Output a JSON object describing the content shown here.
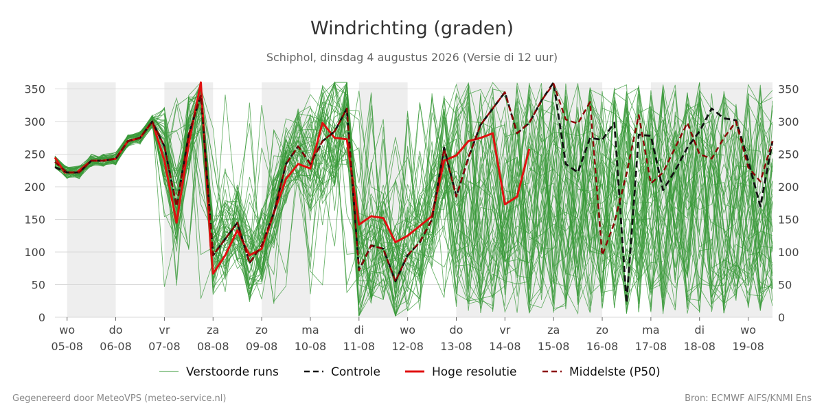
{
  "header": {
    "title": "Windrichting (graden)",
    "subtitle": "Schiphol, dinsdag  4 augustus 2026 (Versie di 12 uur)"
  },
  "footer": {
    "left": "Gegenereerd door MeteoVPS (meteo-service.nl)",
    "right": "Bron: ECMWF AIFS/KNMI Ens"
  },
  "chart_data": {
    "type": "line",
    "title": "Windrichting (graden)",
    "subtitle": "Schiphol, dinsdag  4 augustus 2026 (Versie di 12 uur)",
    "x_range_days": [
      -0.25,
      14.5
    ],
    "ylim": [
      0,
      360
    ],
    "y_ticks": [
      0,
      50,
      100,
      150,
      200,
      250,
      300,
      350
    ],
    "y_axis_both_sides": true,
    "grid": "horizontal",
    "x_ticks": [
      {
        "day": 0,
        "weekday": "wo",
        "date": "05-08"
      },
      {
        "day": 1,
        "weekday": "do",
        "date": "06-08"
      },
      {
        "day": 2,
        "weekday": "vr",
        "date": "07-08"
      },
      {
        "day": 3,
        "weekday": "za",
        "date": "08-08"
      },
      {
        "day": 4,
        "weekday": "zo",
        "date": "09-08"
      },
      {
        "day": 5,
        "weekday": "ma",
        "date": "10-08"
      },
      {
        "day": 6,
        "weekday": "di",
        "date": "11-08"
      },
      {
        "day": 7,
        "weekday": "wo",
        "date": "12-08"
      },
      {
        "day": 8,
        "weekday": "do",
        "date": "13-08"
      },
      {
        "day": 9,
        "weekday": "vr",
        "date": "14-08"
      },
      {
        "day": 10,
        "weekday": "za",
        "date": "15-08"
      },
      {
        "day": 11,
        "weekday": "zo",
        "date": "16-08"
      },
      {
        "day": 12,
        "weekday": "ma",
        "date": "17-08"
      },
      {
        "day": 13,
        "weekday": "di",
        "date": "18-08"
      },
      {
        "day": 14,
        "weekday": "wo",
        "date": "19-08"
      }
    ],
    "shaded_periods_days": [
      [
        0,
        1
      ],
      [
        2,
        3
      ],
      [
        4,
        5
      ],
      [
        6,
        7
      ],
      [
        8,
        11
      ],
      [
        12,
        14.5
      ]
    ],
    "legend": {
      "placement": "bottom",
      "entries": [
        {
          "label": "Verstoorde runs",
          "color": "#3a9a3a",
          "style": "solid-thin"
        },
        {
          "label": "Controle",
          "color": "#111111",
          "style": "dashed"
        },
        {
          "label": "Hoge resolutie",
          "color": "#e01010",
          "style": "solid-thick"
        },
        {
          "label": "Middelste (P50)",
          "color": "#8b0000",
          "style": "dashed"
        }
      ]
    },
    "ensemble": {
      "name": "Verstoorde runs",
      "color": "#3a9a3a",
      "member_count": 50,
      "x_step_days": 0.25,
      "note_values_unreadable": true
    },
    "series": [
      {
        "name": "Hoge resolutie",
        "color": "#e01010",
        "x": [
          -0.25,
          -0.05,
          0.2,
          0.5,
          0.75,
          1.0,
          1.25,
          1.5,
          1.75,
          2.0,
          2.25,
          2.5,
          2.75,
          2.95,
          3.0,
          3.25,
          3.5,
          3.75,
          4.0,
          4.25,
          4.5,
          4.75,
          5.0,
          5.25,
          5.5,
          5.75,
          6.0,
          6.25,
          6.5,
          6.75,
          7.0,
          7.25,
          7.5,
          7.75,
          8.0,
          8.25,
          8.5,
          8.75,
          9.0,
          9.25,
          9.5
        ],
        "y": [
          245,
          222,
          222,
          240,
          240,
          243,
          270,
          275,
          300,
          240,
          145,
          265,
          360,
          110,
          67,
          95,
          133,
          95,
          105,
          160,
          212,
          235,
          228,
          298,
          275,
          273,
          142,
          155,
          152,
          115,
          125,
          140,
          155,
          240,
          248,
          270,
          275,
          282,
          173,
          185,
          258
        ]
      },
      {
        "name": "Controle",
        "color": "#111111",
        "x": [
          -0.25,
          0.0,
          0.25,
          0.5,
          0.75,
          1.0,
          1.25,
          1.5,
          1.75,
          2.0,
          2.25,
          2.5,
          2.75,
          3.0,
          3.25,
          3.5,
          3.75,
          4.0,
          4.25,
          4.5,
          4.75,
          5.0,
          5.25,
          5.5,
          5.75,
          6.0,
          6.25,
          6.5,
          6.75,
          7.0,
          7.25,
          7.5,
          7.75,
          8.0,
          8.25,
          8.5,
          8.75,
          9.0,
          9.25,
          9.5,
          9.75,
          10.0,
          10.25,
          10.5,
          10.75,
          11.0,
          11.25,
          11.5,
          11.75,
          12.0,
          12.25,
          12.5,
          12.75,
          13.0,
          13.25,
          13.5,
          13.75,
          14.0,
          14.25,
          14.5
        ],
        "y": [
          230,
          222,
          222,
          240,
          240,
          243,
          270,
          275,
          300,
          262,
          170,
          280,
          340,
          95,
          120,
          145,
          83,
          110,
          160,
          235,
          262,
          235,
          270,
          285,
          320,
          72,
          110,
          105,
          55,
          95,
          115,
          150,
          260,
          185,
          245,
          295,
          320,
          345,
          282,
          298,
          332,
          360,
          235,
          222,
          275,
          272,
          298,
          22,
          280,
          278,
          195,
          225,
          260,
          285,
          320,
          305,
          302,
          240,
          170,
          270
        ]
      },
      {
        "name": "Middelste (P50)",
        "color": "#8b0000",
        "x": [
          -0.25,
          0.0,
          0.25,
          0.5,
          0.75,
          1.0,
          1.25,
          1.5,
          1.75,
          2.0,
          2.25,
          2.5,
          2.75,
          3.0,
          3.25,
          3.5,
          3.75,
          4.0,
          4.25,
          4.5,
          4.75,
          5.0,
          5.25,
          5.5,
          5.75,
          6.0,
          6.25,
          6.5,
          6.75,
          7.0,
          7.25,
          7.5,
          7.75,
          8.0,
          8.25,
          8.5,
          8.75,
          9.0,
          9.25,
          9.5,
          9.75,
          10.0,
          10.25,
          10.5,
          10.75,
          11.0,
          11.25,
          11.5,
          11.75,
          12.0,
          12.25,
          12.5,
          12.75,
          13.0,
          13.25,
          13.5,
          13.75,
          14.0,
          14.25,
          14.5
        ],
        "y": [
          238,
          222,
          222,
          240,
          240,
          243,
          270,
          275,
          300,
          262,
          170,
          280,
          340,
          95,
          120,
          145,
          83,
          110,
          160,
          235,
          262,
          235,
          270,
          285,
          320,
          72,
          110,
          105,
          55,
          95,
          115,
          150,
          258,
          185,
          245,
          295,
          320,
          345,
          282,
          298,
          332,
          358,
          303,
          297,
          330,
          95,
          145,
          220,
          310,
          205,
          222,
          260,
          298,
          250,
          243,
          275,
          300,
          230,
          208,
          270
        ]
      }
    ]
  }
}
